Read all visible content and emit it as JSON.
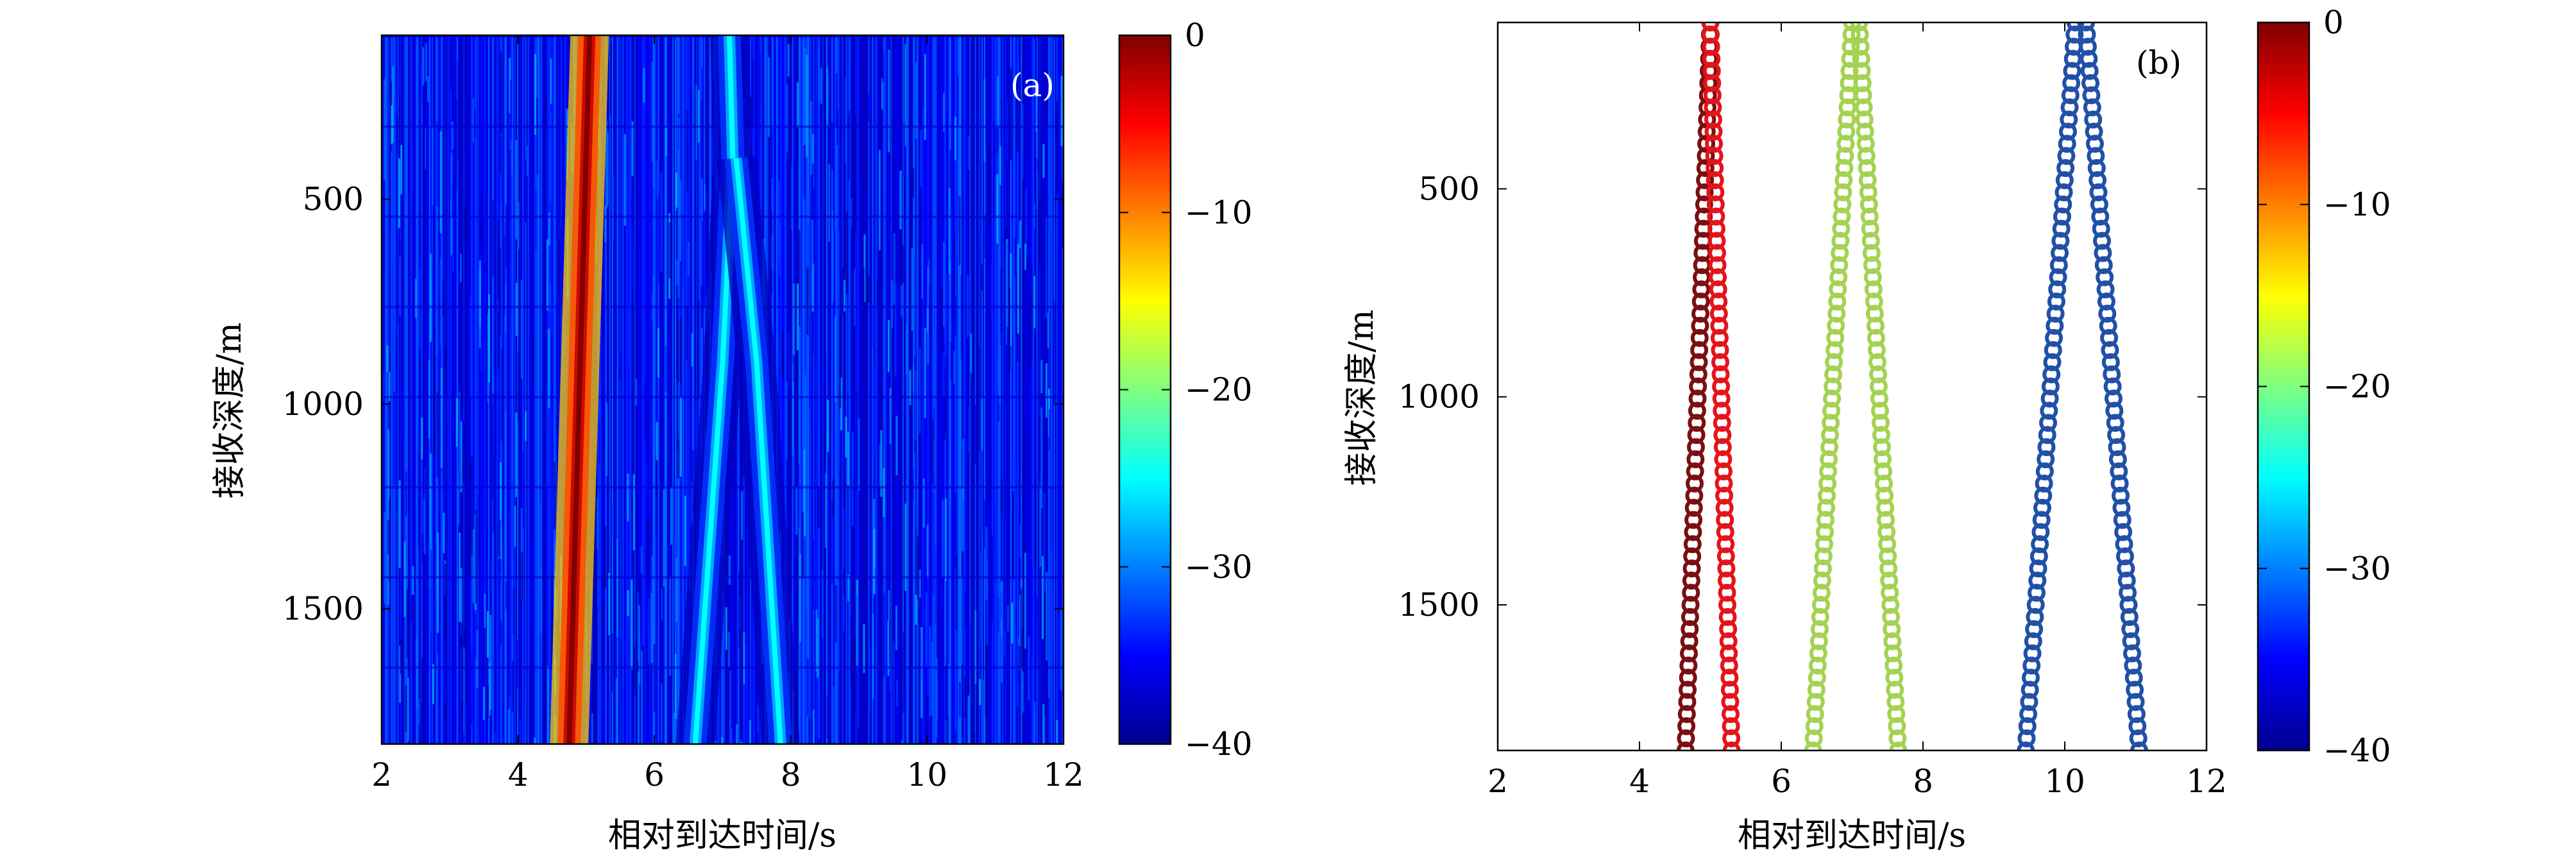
{
  "chart_data": [
    {
      "panel": "a",
      "type": "heatmap",
      "panel_label": "(a)",
      "xlabel": "相对到达时间/s",
      "ylabel": "接收深度/m",
      "xlim": [
        2,
        12
      ],
      "ylim": [
        100,
        1830
      ],
      "y_inverted": true,
      "xticks": [
        2,
        4,
        6,
        8,
        10,
        12
      ],
      "xtick_labels": [
        "2",
        "4",
        "6",
        "8",
        "10",
        "12"
      ],
      "yticks": [
        500,
        1000,
        1500
      ],
      "ytick_labels": [
        "500",
        "1000",
        "1500"
      ],
      "background_db": -35,
      "ridges": [
        {
          "name": "arrival-1",
          "depths": [
            100,
            1830
          ],
          "times": [
            5.05,
            4.75
          ],
          "peak_db": 0
        },
        {
          "name": "arrival-2",
          "depths": [
            100,
            400,
            900,
            1830
          ],
          "times": [
            7.1,
            7.15,
            7.0,
            6.6
          ],
          "peak_db": -25
        },
        {
          "name": "arrival-2b",
          "depths": [
            400,
            900,
            1830
          ],
          "times": [
            7.2,
            7.5,
            7.85
          ],
          "peak_db": -25
        }
      ],
      "colorbar": {
        "range": [
          -40,
          0
        ],
        "ticks": [
          0,
          -10,
          -20,
          -30,
          -40
        ],
        "tick_labels": [
          "0",
          "−10",
          "−20",
          "−30",
          "−40"
        ]
      }
    },
    {
      "panel": "b",
      "type": "scatter",
      "panel_label": "(b)",
      "xlabel": "相对到达时间/s",
      "ylabel": "接收深度/m",
      "xlim": [
        2,
        12
      ],
      "ylim": [
        100,
        1850
      ],
      "y_inverted": true,
      "xticks": [
        2,
        4,
        6,
        8,
        10,
        12
      ],
      "xtick_labels": [
        "2",
        "4",
        "6",
        "8",
        "10",
        "12"
      ],
      "yticks": [
        500,
        1000,
        1500
      ],
      "ytick_labels": [
        "500",
        "1000",
        "1500"
      ],
      "series": [
        {
          "name": "path-1",
          "db": 0,
          "color": "#7a0f12",
          "top": {
            "time": 5.0,
            "depth": 100
          },
          "bottom": {
            "time": 4.65,
            "depth": 1850
          }
        },
        {
          "name": "path-2",
          "db": -3,
          "color": "#e4141a",
          "top": {
            "time": 5.0,
            "depth": 100
          },
          "bottom": {
            "time": 5.3,
            "depth": 1850
          }
        },
        {
          "name": "path-3",
          "db": -18,
          "color": "#a4d252",
          "top": {
            "time": 7.0,
            "depth": 100
          },
          "bottom": {
            "time": 6.45,
            "depth": 1850
          }
        },
        {
          "name": "path-4",
          "db": -18,
          "color": "#a4d252",
          "top": {
            "time": 7.1,
            "depth": 100
          },
          "bottom": {
            "time": 7.65,
            "depth": 1850
          }
        },
        {
          "name": "path-5",
          "db": -32,
          "color": "#2150a6",
          "top": {
            "time": 10.15,
            "depth": 100
          },
          "bottom": {
            "time": 9.45,
            "depth": 1850
          }
        },
        {
          "name": "path-6",
          "db": -32,
          "color": "#2150a6",
          "top": {
            "time": 10.3,
            "depth": 100
          },
          "bottom": {
            "time": 11.05,
            "depth": 1850
          }
        }
      ],
      "colorbar": {
        "range": [
          -40,
          0
        ],
        "ticks": [
          0,
          -10,
          -20,
          -30,
          -40
        ],
        "tick_labels": [
          "0",
          "−10",
          "−20",
          "−30",
          "−40"
        ]
      }
    }
  ]
}
